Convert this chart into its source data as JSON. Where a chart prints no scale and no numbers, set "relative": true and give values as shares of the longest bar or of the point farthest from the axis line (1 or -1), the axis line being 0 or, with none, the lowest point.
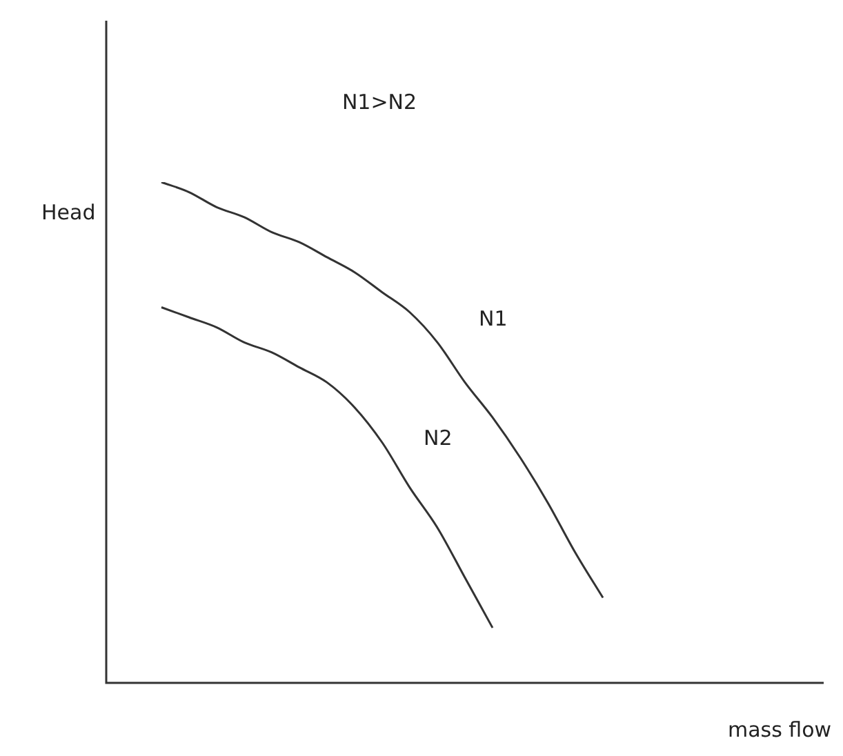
{
  "chart_data": {
    "type": "line",
    "relative": true,
    "xlabel": "mass flow",
    "ylabel": "Head",
    "annotations": [
      "N1>N2"
    ],
    "legend": false,
    "marker": "none",
    "categories": [
      null,
      null,
      null,
      null,
      null,
      null,
      null,
      null,
      null,
      null,
      null,
      null,
      null,
      null,
      null,
      null,
      null,
      null,
      null,
      null,
      null,
      null,
      null,
      null,
      null,
      null,
      null
    ],
    "series": [
      {
        "name": "N1",
        "color": "#333333",
        "values": [
          null,
          null,
          1,
          0.98,
          0.95,
          0.93,
          0.9,
          0.88,
          0.85,
          0.82,
          0.78,
          0.74,
          0.68,
          0.6,
          0.53,
          0.45,
          0.36,
          0.26,
          0.17,
          null,
          null,
          null,
          null,
          null,
          null,
          null,
          null
        ]
      },
      {
        "name": "N2",
        "color": "#333333",
        "values": [
          null,
          null,
          0.75,
          0.73,
          0.71,
          0.68,
          0.66,
          0.63,
          0.6,
          0.55,
          0.48,
          0.39,
          0.31,
          0.21,
          0.11,
          null,
          null,
          null,
          null,
          null,
          null,
          null,
          null,
          null,
          null,
          null,
          null
        ]
      }
    ]
  }
}
